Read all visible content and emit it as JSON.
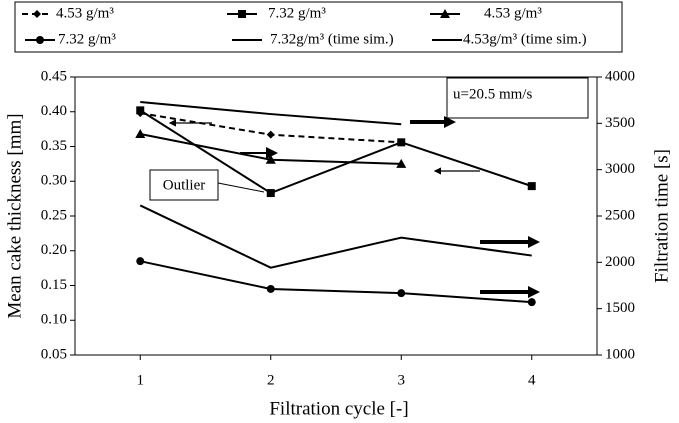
{
  "chart_data": {
    "type": "line",
    "x_label": "Filtration cycle [-]",
    "y_label": "Mean cake thickness [mm]",
    "y2_label": "Filtration time [s]",
    "x": [
      1,
      2,
      3,
      4
    ],
    "xlim": [
      0.5,
      4.5
    ],
    "xticks": [
      1,
      2,
      3,
      4
    ],
    "ylim": [
      0.05,
      0.45
    ],
    "yticks": [
      0.05,
      {
        "value": 0.1,
        "label": "0.10"
      },
      0.15,
      {
        "value": 0.2,
        "label": "0.20"
      },
      0.25,
      {
        "value": 0.3,
        "label": "0.30"
      },
      0.35,
      {
        "value": 0.4,
        "label": "0.40"
      },
      0.45
    ],
    "y2lim": [
      1000,
      4000
    ],
    "y2ticks": [
      1000,
      1500,
      2000,
      2500,
      3000,
      3500,
      4000
    ],
    "annotations": [
      "u=20.5 mm/s",
      "Outlier"
    ],
    "series": [
      {
        "name": "4.53 g/m³",
        "color": "#000000",
        "marker": "diamond",
        "dashed": true,
        "values": [
          0.398,
          0.367,
          0.356,
          null
        ]
      },
      {
        "name": "7.32 g/m³",
        "color": "#000000",
        "marker": "square",
        "dashed": false,
        "values": [
          0.402,
          0.283,
          0.356,
          0.293
        ]
      },
      {
        "name": "4.53 g/m³",
        "color": "#000000",
        "marker": "triangle",
        "dashed": false,
        "values": [
          0.368,
          0.331,
          0.325,
          null
        ]
      },
      {
        "name": "7.32 g/m³",
        "color": "#000000",
        "marker": "circle",
        "dashed": false,
        "values": [
          0.185,
          0.145,
          0.139,
          0.126
        ]
      },
      {
        "name": "7.32g/m³ (time sim.)",
        "color": "#000000",
        "marker": "none",
        "dashed": false,
        "axis": "y2",
        "values": [
          2614,
          1942,
          2267,
          2073
        ]
      },
      {
        "name": "4.53g/m³ (time sim.)",
        "color": "#000000",
        "marker": "none",
        "dashed": false,
        "axis": "y2",
        "values": [
          3730,
          3600,
          3490,
          null
        ]
      }
    ]
  }
}
